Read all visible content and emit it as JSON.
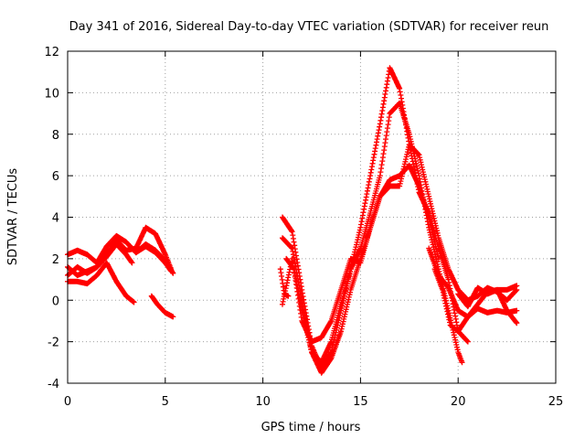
{
  "chart_data": {
    "type": "scatter",
    "title": "Day 341 of 2016, Sidereal Day-to-day VTEC variation (SDTVAR) for receiver reun",
    "xlabel": "GPS time / hours",
    "ylabel": "SDTVAR / TECUs",
    "xlim": [
      0,
      25
    ],
    "ylim": [
      -4,
      12
    ],
    "xticks": [
      0,
      5,
      10,
      15,
      20,
      25
    ],
    "yticks": [
      -4,
      -2,
      0,
      2,
      4,
      6,
      8,
      10,
      12
    ],
    "grid": true,
    "marker": "+",
    "color": "#ff0000",
    "series": [
      {
        "name": "trace-1",
        "x": [
          0,
          0.5,
          1,
          1.5,
          2,
          2.5,
          3,
          3.5,
          4,
          4.5,
          5,
          5.3
        ],
        "y": [
          2.2,
          2.4,
          2.2,
          1.8,
          2.6,
          3.1,
          2.8,
          2.3,
          2.6,
          2.3,
          1.8,
          1.4
        ]
      },
      {
        "name": "trace-2",
        "x": [
          0,
          0.5,
          1,
          1.5,
          2,
          2.5,
          3,
          3.5,
          4,
          4.5,
          5,
          5.3
        ],
        "y": [
          1.6,
          1.2,
          1.4,
          1.6,
          2.2,
          2.9,
          2.4,
          2.5,
          3.5,
          3.2,
          2.2,
          1.5
        ]
      },
      {
        "name": "trace-3",
        "x": [
          0,
          0.5,
          1,
          1.5,
          2,
          2.5,
          3,
          3.3
        ],
        "y": [
          1.2,
          1.6,
          1.3,
          1.6,
          2.1,
          2.7,
          2.2,
          1.8
        ]
      },
      {
        "name": "trace-4",
        "x": [
          0,
          0.5,
          1,
          1.5,
          2,
          2.5,
          3,
          3.4
        ],
        "y": [
          0.9,
          0.9,
          0.8,
          1.2,
          1.8,
          0.9,
          0.2,
          -0.1
        ]
      },
      {
        "name": "trace-5",
        "x": [
          3.5,
          4,
          4.5,
          5,
          5.4
        ],
        "y": [
          2.3,
          2.7,
          2.4,
          1.9,
          1.3
        ]
      },
      {
        "name": "trace-6",
        "x": [
          4.3,
          4.6,
          5,
          5.4
        ],
        "y": [
          0.2,
          -0.2,
          -0.6,
          -0.8
        ]
      },
      {
        "name": "trace-7",
        "x": [
          11,
          11.5,
          12,
          12.5,
          13,
          13.5,
          14,
          14.5,
          15,
          15.5,
          16,
          16.5,
          17,
          17.5,
          18,
          18.5,
          19,
          19.5,
          20,
          20.5
        ],
        "y": [
          4.0,
          3.3,
          0.5,
          -2.2,
          -3.3,
          -2.5,
          -0.5,
          1.5,
          3.5,
          6.0,
          8.5,
          11.2,
          10.2,
          7.5,
          5.2,
          4.2,
          2.5,
          1.0,
          -1.5,
          -2.0
        ]
      },
      {
        "name": "trace-8",
        "x": [
          11,
          11.5,
          12,
          12.5,
          13,
          13.5,
          14,
          14.5,
          15,
          15.5,
          16,
          16.5,
          17,
          17.5,
          18,
          18.5,
          19,
          19.5,
          20,
          20.2
        ],
        "y": [
          3.0,
          2.5,
          0.0,
          -2.5,
          -3.0,
          -2.0,
          -0.2,
          1.5,
          2.5,
          4.2,
          6.0,
          9.0,
          9.5,
          8.0,
          6.0,
          3.5,
          1.5,
          -0.5,
          -2.5,
          -3.0
        ]
      },
      {
        "name": "trace-9",
        "x": [
          11.2,
          11.6,
          12,
          12.5,
          13,
          13.5,
          14,
          14.5,
          15,
          15.5,
          16,
          16.5,
          17,
          17.5,
          18,
          18.5,
          19
        ],
        "y": [
          2.0,
          1.5,
          -0.5,
          -2.5,
          -3.5,
          -2.8,
          -1.5,
          0.5,
          2.0,
          3.5,
          5.0,
          5.8,
          6.0,
          6.5,
          5.5,
          4.0,
          2.0
        ]
      },
      {
        "name": "trace-10",
        "x": [
          11,
          11.5,
          12,
          12.5,
          13,
          13.5,
          14,
          14.5,
          15,
          15.5,
          16,
          16.5,
          17,
          17.5,
          18,
          18.5,
          19,
          19.5,
          20,
          20.5,
          21,
          21.5,
          22,
          22.5,
          23
        ],
        "y": [
          -0.2,
          2.0,
          -1.0,
          -2.0,
          -1.8,
          -1.0,
          0.5,
          2.0,
          1.8,
          3.5,
          5.0,
          5.5,
          5.5,
          7.5,
          7.0,
          5.0,
          3.0,
          1.5,
          0.5,
          0.0,
          0.2,
          0.6,
          0.4,
          0.0,
          0.5
        ]
      },
      {
        "name": "trace-11",
        "x": [
          18.5,
          19,
          19.5,
          20,
          20.5,
          21,
          21.5,
          22,
          22.5,
          23
        ],
        "y": [
          2.5,
          1.2,
          0.6,
          -0.5,
          -0.8,
          -0.4,
          -0.6,
          -0.5,
          -0.6,
          -0.5
        ]
      },
      {
        "name": "trace-12",
        "x": [
          18.8,
          19.2,
          19.6,
          20,
          20.5,
          21,
          21.5,
          22,
          22.5,
          23
        ],
        "y": [
          1.5,
          0.5,
          -1.2,
          -1.5,
          -0.8,
          -0.2,
          0.4,
          0.5,
          -0.5,
          -1.1
        ]
      },
      {
        "name": "trace-13",
        "x": [
          20,
          20.5,
          21,
          21.5,
          22,
          22.5,
          23
        ],
        "y": [
          0.3,
          -0.3,
          0.6,
          0.3,
          0.5,
          0.5,
          0.7
        ]
      },
      {
        "name": "trace-14",
        "x": [
          10.9,
          11.1,
          11.3
        ],
        "y": [
          1.5,
          0.3,
          0.2
        ]
      }
    ]
  }
}
